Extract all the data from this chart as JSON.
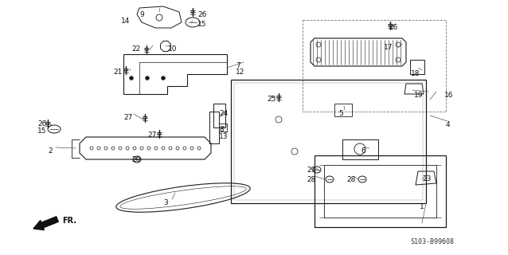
{
  "diagram_code": "S103-B99608",
  "background_color": "#ffffff",
  "line_color": "#1a1a1a",
  "text_color": "#111111",
  "figsize": [
    6.38,
    3.2
  ],
  "dpi": 100,
  "labels": [
    [
      "9",
      175,
      14,
      "left"
    ],
    [
      "14",
      152,
      22,
      "left"
    ],
    [
      "26",
      248,
      14,
      "left"
    ],
    [
      "15",
      248,
      26,
      "left"
    ],
    [
      "22",
      165,
      57,
      "left"
    ],
    [
      "10",
      211,
      57,
      "left"
    ],
    [
      "7",
      296,
      78,
      "left"
    ],
    [
      "12",
      296,
      86,
      "left"
    ],
    [
      "21",
      142,
      86,
      "left"
    ],
    [
      "27",
      155,
      143,
      "left"
    ],
    [
      "26",
      47,
      151,
      "left"
    ],
    [
      "15",
      47,
      160,
      "left"
    ],
    [
      "2",
      60,
      185,
      "left"
    ],
    [
      "20",
      165,
      196,
      "left"
    ],
    [
      "27",
      185,
      165,
      "left"
    ],
    [
      "24",
      275,
      138,
      "left"
    ],
    [
      "8",
      275,
      158,
      "left"
    ],
    [
      "13",
      275,
      167,
      "left"
    ],
    [
      "3",
      205,
      250,
      "left"
    ],
    [
      "26",
      488,
      30,
      "left"
    ],
    [
      "17",
      482,
      55,
      "left"
    ],
    [
      "18",
      516,
      88,
      "left"
    ],
    [
      "16",
      558,
      115,
      "left"
    ],
    [
      "19",
      520,
      115,
      "left"
    ],
    [
      "25",
      335,
      120,
      "left"
    ],
    [
      "5",
      425,
      138,
      "left"
    ],
    [
      "4",
      560,
      152,
      "left"
    ],
    [
      "6",
      453,
      185,
      "left"
    ],
    [
      "29",
      385,
      209,
      "left"
    ],
    [
      "28",
      385,
      221,
      "left"
    ],
    [
      "28",
      435,
      221,
      "left"
    ],
    [
      "23",
      530,
      220,
      "left"
    ],
    [
      "1",
      527,
      255,
      "left"
    ]
  ]
}
